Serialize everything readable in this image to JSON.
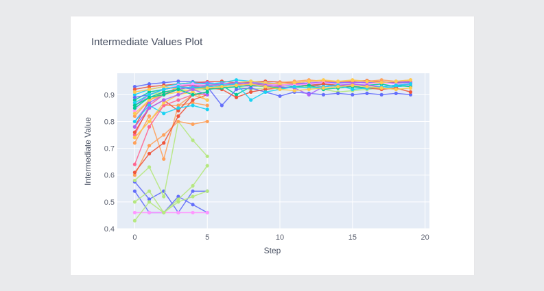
{
  "chart_data": {
    "type": "line",
    "title": "Intermediate Values Plot",
    "xlabel": "Step",
    "ylabel": "Intermediate Value",
    "xlim": [
      -1.2,
      20.3
    ],
    "ylim": [
      0.4,
      0.98
    ],
    "xticks": [
      0,
      5,
      10,
      15,
      20
    ],
    "yticks": [
      0.4,
      0.5,
      0.6,
      0.7,
      0.8,
      0.9
    ],
    "grid": true,
    "series": [
      {
        "color": "#636efa",
        "x": [
          0,
          1,
          2,
          3,
          4,
          5,
          6,
          7,
          8,
          9,
          10,
          11,
          12,
          13,
          14,
          15,
          16,
          17,
          18,
          19
        ],
        "y": [
          0.93,
          0.94,
          0.945,
          0.95,
          0.948,
          0.945,
          0.94,
          0.942,
          0.945,
          0.94,
          0.938,
          0.94,
          0.942,
          0.945,
          0.944,
          0.946,
          0.945,
          0.947,
          0.944,
          0.945
        ]
      },
      {
        "color": "#ef553b",
        "x": [
          0,
          1,
          2,
          3,
          4,
          5,
          6,
          7,
          8,
          9,
          10,
          11,
          12,
          13,
          14,
          15,
          16,
          17,
          18,
          19
        ],
        "y": [
          0.92,
          0.93,
          0.935,
          0.94,
          0.945,
          0.948,
          0.95,
          0.945,
          0.948,
          0.95,
          0.947,
          0.945,
          0.95,
          0.952,
          0.948,
          0.95,
          0.953,
          0.948,
          0.946,
          0.95
        ]
      },
      {
        "color": "#00cc96",
        "x": [
          0,
          1,
          2,
          3,
          4,
          5,
          6,
          7,
          8,
          9,
          10,
          11,
          12,
          13,
          14,
          15,
          16,
          17,
          18,
          19
        ],
        "y": [
          0.88,
          0.91,
          0.92,
          0.93,
          0.935,
          0.93,
          0.935,
          0.9,
          0.93,
          0.935,
          0.93,
          0.925,
          0.93,
          0.94,
          0.935,
          0.93,
          0.935,
          0.94,
          0.93,
          0.935
        ]
      },
      {
        "color": "#ab63fa",
        "x": [
          0,
          1,
          2,
          3,
          4,
          5,
          6,
          7,
          8,
          9,
          10,
          11,
          12,
          13,
          14,
          15,
          16,
          17,
          18,
          19
        ],
        "y": [
          0.86,
          0.9,
          0.92,
          0.93,
          0.94,
          0.945,
          0.94,
          0.942,
          0.944,
          0.946,
          0.94,
          0.942,
          0.944,
          0.946,
          0.948,
          0.945,
          0.947,
          0.946,
          0.948,
          0.947
        ]
      },
      {
        "color": "#ffa15a",
        "x": [
          0,
          1,
          2,
          3,
          4,
          5,
          6,
          7,
          8,
          9,
          10,
          11,
          12,
          13,
          14,
          15,
          16,
          17,
          18,
          19
        ],
        "y": [
          0.82,
          0.88,
          0.91,
          0.92,
          0.93,
          0.935,
          0.93,
          0.935,
          0.94,
          0.938,
          0.945,
          0.95,
          0.955,
          0.95,
          0.948,
          0.952,
          0.95,
          0.955,
          0.95,
          0.955
        ]
      },
      {
        "color": "#19d3f3",
        "x": [
          0,
          1,
          2,
          3,
          4,
          5,
          6,
          7,
          8,
          9,
          10,
          11,
          12,
          13,
          14,
          15,
          16,
          17,
          18,
          19
        ],
        "y": [
          0.9,
          0.92,
          0.93,
          0.94,
          0.945,
          0.94,
          0.945,
          0.955,
          0.95,
          0.945,
          0.94,
          0.93,
          0.935,
          0.94,
          0.93,
          0.935,
          0.92,
          0.925,
          0.93,
          0.935
        ]
      },
      {
        "color": "#ff6692",
        "x": [
          0,
          1,
          2,
          3,
          4,
          5,
          6,
          7,
          8,
          9,
          10,
          11,
          12,
          13,
          14,
          15,
          16,
          17,
          18,
          19
        ],
        "y": [
          0.75,
          0.86,
          0.9,
          0.93,
          0.935,
          0.93,
          0.935,
          0.94,
          0.935,
          0.93,
          0.935,
          0.94,
          0.935,
          0.93,
          0.935,
          0.94,
          0.935,
          0.93,
          0.935,
          0.94
        ]
      },
      {
        "color": "#b6e880",
        "x": [
          0,
          1,
          2,
          3,
          4,
          5,
          6,
          7,
          8,
          9,
          10,
          11,
          12,
          13,
          14,
          15,
          16,
          17,
          18,
          19
        ],
        "y": [
          0.87,
          0.9,
          0.91,
          0.92,
          0.915,
          0.92,
          0.925,
          0.93,
          0.92,
          0.925,
          0.93,
          0.925,
          0.93,
          0.92,
          0.91,
          0.915,
          0.92,
          0.925,
          0.92,
          0.925
        ]
      },
      {
        "color": "#ff97ff",
        "x": [
          0,
          1,
          2,
          3,
          4,
          5,
          6,
          7,
          8,
          9,
          10,
          11,
          12,
          13,
          14,
          15,
          16,
          17,
          18,
          19
        ],
        "y": [
          0.84,
          0.9,
          0.92,
          0.935,
          0.94,
          0.935,
          0.94,
          0.935,
          0.93,
          0.935,
          0.94,
          0.935,
          0.94,
          0.945,
          0.94,
          0.935,
          0.94,
          0.945,
          0.94,
          0.935
        ]
      },
      {
        "color": "#fecb52",
        "x": [
          0,
          1,
          2,
          3,
          4,
          5,
          6,
          7,
          8,
          9,
          10,
          11,
          12,
          13,
          14,
          15,
          16,
          17,
          18,
          19
        ],
        "y": [
          0.91,
          0.92,
          0.93,
          0.92,
          0.93,
          0.935,
          0.94,
          0.945,
          0.95,
          0.945,
          0.94,
          0.945,
          0.95,
          0.955,
          0.95,
          0.955,
          0.95,
          0.945,
          0.95,
          0.955
        ]
      },
      {
        "color": "#636efa",
        "x": [
          0,
          1,
          2,
          3,
          4,
          5,
          6,
          7,
          8,
          9,
          10,
          11,
          12,
          13,
          14,
          15,
          16,
          17,
          18,
          19
        ],
        "y": [
          0.89,
          0.9,
          0.92,
          0.93,
          0.92,
          0.93,
          0.86,
          0.92,
          0.925,
          0.91,
          0.895,
          0.91,
          0.905,
          0.9,
          0.905,
          0.9,
          0.905,
          0.9,
          0.905,
          0.9
        ]
      },
      {
        "color": "#ef553b",
        "x": [
          0,
          1,
          2,
          3,
          4,
          5,
          6,
          7,
          8,
          9,
          10,
          11,
          12,
          13,
          14,
          15,
          16,
          17,
          18,
          19
        ],
        "y": [
          0.78,
          0.88,
          0.9,
          0.92,
          0.93,
          0.925,
          0.92,
          0.89,
          0.91,
          0.92,
          0.925,
          0.93,
          0.935,
          0.94,
          0.935,
          0.93,
          0.925,
          0.92,
          0.925,
          0.91
        ]
      },
      {
        "color": "#00cc96",
        "x": [
          0,
          1,
          2,
          3,
          4,
          5,
          6,
          7,
          8,
          9,
          10,
          11,
          12,
          13,
          14,
          15,
          16,
          17,
          18,
          19
        ],
        "y": [
          0.85,
          0.89,
          0.91,
          0.92,
          0.93,
          0.92,
          0.925,
          0.93,
          0.935,
          0.93,
          0.925,
          0.93,
          0.935,
          0.92,
          0.925,
          0.93,
          0.925,
          0.93,
          0.935,
          0.93
        ]
      },
      {
        "color": "#ab63fa",
        "x": [
          0,
          1,
          2,
          3,
          4,
          5,
          6,
          7,
          8,
          9,
          10,
          11,
          12,
          13,
          14,
          15,
          16,
          17,
          18,
          19
        ],
        "y": [
          0.8,
          0.87,
          0.9,
          0.92,
          0.93,
          0.935,
          0.94,
          0.945,
          0.94,
          0.935,
          0.93,
          0.925,
          0.9,
          0.93,
          0.935,
          0.94,
          0.935,
          0.93,
          0.935,
          0.94
        ]
      },
      {
        "color": "#19d3f3",
        "x": [
          0,
          1,
          2,
          3,
          4,
          5,
          6,
          7,
          8,
          9,
          10,
          11,
          12,
          13,
          14,
          15,
          16,
          17,
          18,
          19
        ],
        "y": [
          0.87,
          0.9,
          0.92,
          0.93,
          0.925,
          0.93,
          0.935,
          0.94,
          0.88,
          0.91,
          0.92,
          0.93,
          0.925,
          0.93,
          0.935,
          0.92,
          0.925,
          0.93,
          0.935,
          0.94
        ]
      },
      {
        "color": "#fecb52",
        "x": [
          0,
          1,
          2,
          3,
          4,
          5,
          6,
          7,
          8,
          9,
          10,
          11,
          12,
          13,
          14,
          15,
          16,
          17,
          18,
          19
        ],
        "y": [
          0.83,
          0.88,
          0.9,
          0.91,
          0.92,
          0.925,
          0.93,
          0.935,
          0.94,
          0.93,
          0.92,
          0.915,
          0.92,
          0.925,
          0.93,
          0.935,
          0.93,
          0.925,
          0.92,
          0.925
        ]
      },
      {
        "color": "#636efa",
        "x": [
          0,
          1,
          2,
          3,
          4,
          5
        ],
        "y": [
          0.575,
          0.51,
          0.54,
          0.46,
          0.54,
          0.54
        ]
      },
      {
        "color": "#636efa",
        "x": [
          0,
          1,
          2,
          3,
          4,
          5
        ],
        "y": [
          0.54,
          0.46,
          0.46,
          0.52,
          0.49,
          0.46
        ]
      },
      {
        "color": "#ff97ff",
        "x": [
          0,
          1,
          2,
          3,
          4,
          5
        ],
        "y": [
          0.46,
          0.46,
          0.46,
          0.46,
          0.46,
          0.46
        ]
      },
      {
        "color": "#b6e880",
        "x": [
          0,
          1,
          2,
          3,
          4,
          5
        ],
        "y": [
          0.58,
          0.63,
          0.52,
          0.8,
          0.73,
          0.67
        ]
      },
      {
        "color": "#b6e880",
        "x": [
          0,
          1,
          2,
          3,
          4,
          5
        ],
        "y": [
          0.5,
          0.54,
          0.46,
          0.51,
          0.56,
          0.635
        ]
      },
      {
        "color": "#b6e880",
        "x": [
          0,
          1,
          2,
          3,
          4,
          5
        ],
        "y": [
          0.43,
          0.5,
          0.46,
          0.5,
          0.52,
          0.54
        ]
      },
      {
        "color": "#ffa15a",
        "x": [
          0,
          1,
          2,
          3,
          4,
          5
        ],
        "y": [
          0.72,
          0.82,
          0.66,
          0.86,
          0.9,
          0.88
        ]
      },
      {
        "color": "#ffa15a",
        "x": [
          0,
          1,
          2,
          3,
          4,
          5
        ],
        "y": [
          0.6,
          0.71,
          0.75,
          0.8,
          0.79,
          0.8
        ]
      },
      {
        "color": "#ffa15a",
        "x": [
          0,
          1,
          2,
          3,
          4,
          5
        ],
        "y": [
          0.74,
          0.8,
          0.86,
          0.86,
          0.87,
          0.86
        ]
      },
      {
        "color": "#ef553b",
        "x": [
          0,
          1,
          2,
          3,
          4,
          5
        ],
        "y": [
          0.61,
          0.68,
          0.72,
          0.82,
          0.88,
          0.9
        ]
      },
      {
        "color": "#ef553b",
        "x": [
          0,
          1,
          2,
          3,
          4,
          5
        ],
        "y": [
          0.76,
          0.85,
          0.88,
          0.84,
          0.9,
          0.91
        ]
      },
      {
        "color": "#19d3f3",
        "x": [
          0,
          1,
          2,
          3,
          4,
          5
        ],
        "y": [
          0.8,
          0.86,
          0.83,
          0.85,
          0.86,
          0.845
        ]
      },
      {
        "color": "#ff6692",
        "x": [
          0,
          1,
          2,
          3,
          4,
          5
        ],
        "y": [
          0.64,
          0.78,
          0.86,
          0.88,
          0.9,
          0.9
        ]
      },
      {
        "color": "#fecb52",
        "x": [
          0,
          1,
          2,
          3,
          4,
          5
        ],
        "y": [
          0.74,
          0.8,
          0.87,
          0.9,
          0.91,
          0.88
        ]
      },
      {
        "color": "#ab63fa",
        "x": [
          0,
          1,
          2,
          3,
          4,
          5
        ],
        "y": [
          0.78,
          0.85,
          0.88,
          0.9,
          0.92,
          0.9
        ]
      },
      {
        "color": "#00cc96",
        "x": [
          0,
          1,
          2,
          3,
          4,
          5
        ],
        "y": [
          0.86,
          0.89,
          0.9,
          0.92,
          0.9,
          0.91
        ]
      }
    ]
  }
}
